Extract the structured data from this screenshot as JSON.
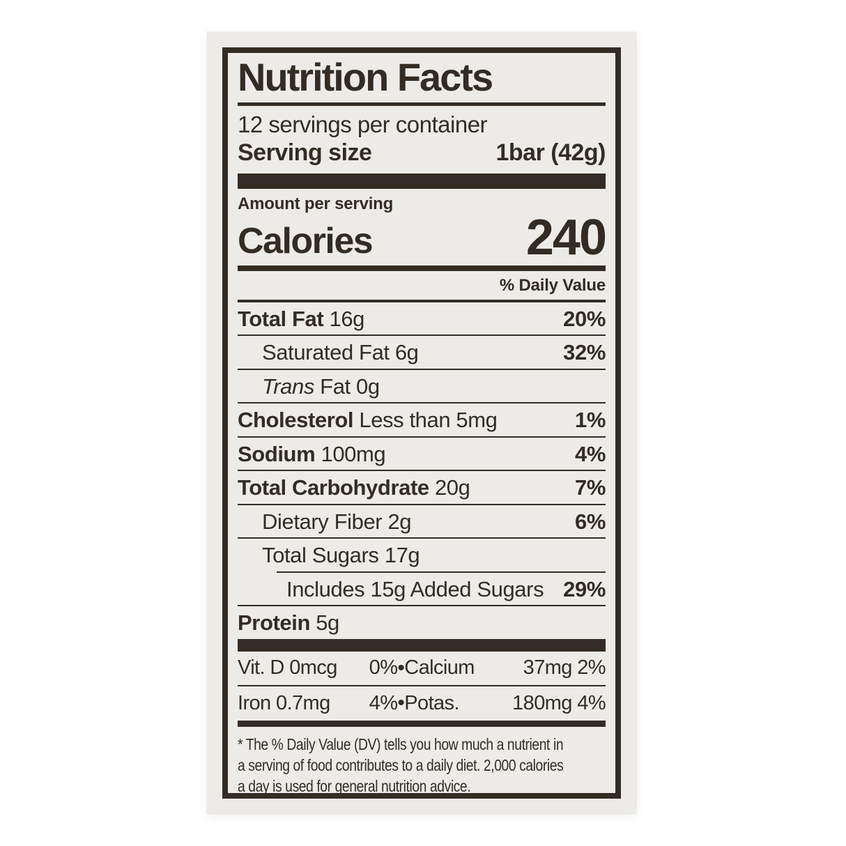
{
  "colors": {
    "ink": "#322c25",
    "card_background": "#edebe8",
    "page_background": "#ffffff"
  },
  "label": {
    "title": "Nutrition Facts",
    "servings_per_container": "12 servings per container",
    "serving_size": {
      "label": "Serving size",
      "value": "1bar (42g)"
    },
    "amount_per_serving": "Amount per serving",
    "calories": {
      "label": "Calories",
      "value": "240"
    },
    "daily_value_header": "% Daily Value",
    "nutrients": [
      {
        "bold": "Total Fat",
        "text": "16g",
        "pct": "20%"
      },
      {
        "bold": "",
        "text": "Saturated Fat 6g",
        "pct": "32%"
      },
      {
        "italic": "Trans",
        "text": "Fat 0g",
        "pct": ""
      },
      {
        "bold": "Cholesterol",
        "text": "Less than 5mg",
        "pct": "1%"
      },
      {
        "bold": "Sodium",
        "text": "100mg",
        "pct": "4%"
      },
      {
        "bold": "Total Carbohydrate",
        "text": "20g",
        "pct": "7%"
      },
      {
        "bold": "",
        "text": "Dietary Fiber 2g",
        "pct": "6%"
      },
      {
        "bold": "",
        "text": "Total Sugars 17g",
        "pct": ""
      },
      {
        "bold": "",
        "text": "Includes 15g Added Sugars",
        "pct": "29%"
      },
      {
        "bold": "Protein",
        "text": "5g",
        "pct": ""
      }
    ],
    "bullet": "•",
    "micronutrients": [
      {
        "left_name": "Vit. D 0mcg",
        "left_pct": "0%",
        "right_name": "Calcium",
        "right_value": "37mg 2%"
      },
      {
        "left_name": "Iron 0.7mg",
        "left_pct": "4%",
        "right_name": "Potas.",
        "right_value": "180mg 4%"
      }
    ],
    "footnote_lines": [
      "* The % Daily Value (DV) tells you how much a nutrient in",
      "a serving of food contributes to a daily diet. 2,000 calories",
      "a day is used for general nutrition advice."
    ]
  }
}
